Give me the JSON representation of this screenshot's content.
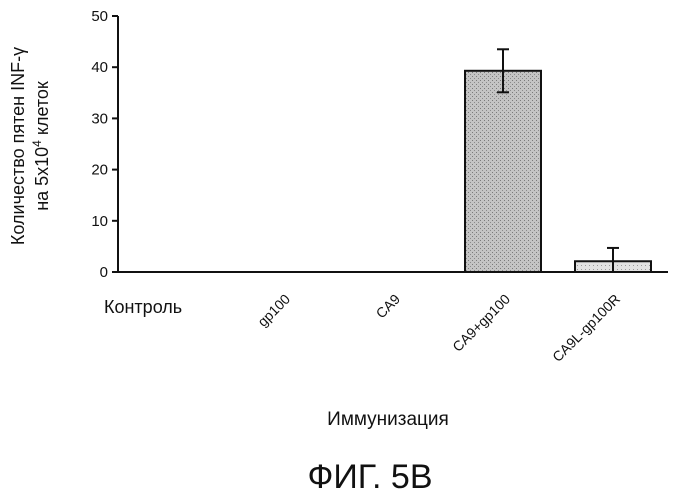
{
  "chart_data": {
    "type": "bar",
    "categories": [
      "Контроль",
      "gp100",
      "CA9",
      "CA9+gp100",
      "CA9L-gp100R"
    ],
    "values": [
      0,
      0,
      0,
      39.3,
      2.1
    ],
    "errors": [
      0,
      0,
      0,
      4.2,
      2.6
    ],
    "ylim": [
      0,
      50
    ],
    "yticks": [
      0,
      10,
      20,
      30,
      40,
      50
    ],
    "ylabel_line1": "Количество пятен INF-γ",
    "ylabel_line2_prefix": "на 5x10",
    "ylabel_line2_sup": "4",
    "ylabel_line2_suffix": " клеток",
    "xlabel": "Иммунизация",
    "grid": false,
    "bar_colors": [
      "#b8b8b8",
      "#b8b8b8",
      "#b8b8b8",
      "#b8b8b8",
      "#dcdcdc"
    ]
  },
  "figure_caption": "ФИГ. 5B"
}
